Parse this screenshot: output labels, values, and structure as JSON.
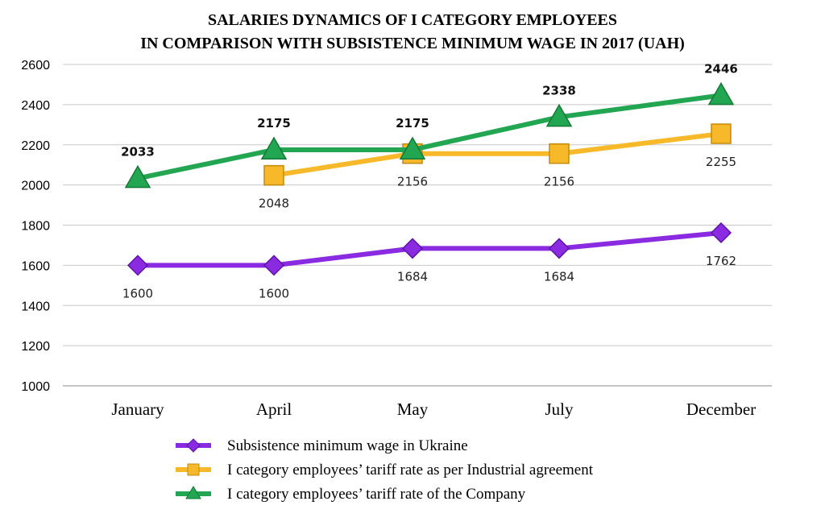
{
  "chart_data": {
    "type": "line",
    "title": [
      "SALARIES DYNAMICS OF I CATEGORY EMPLOYEES",
      "IN COMPARISON WITH SUBSISTENCE MINIMUM WAGE IN 2017 (UAH)"
    ],
    "categories": [
      "January",
      "April",
      "May",
      "July",
      "December"
    ],
    "ylim": [
      1000,
      2600
    ],
    "yticks": [
      1000,
      1200,
      1400,
      1600,
      1800,
      2000,
      2200,
      2400,
      2600
    ],
    "grid": true,
    "legend_position": "bottom",
    "series": [
      {
        "name": "Subsistence minimum wage in Ukraine",
        "color": "#8a2be2",
        "marker": "diamond",
        "values": [
          1600,
          1600,
          1684,
          1684,
          1762
        ],
        "labels": [
          "1600",
          "1600",
          "1684",
          "1684",
          "1762"
        ],
        "label_position": "below",
        "label_bold": false
      },
      {
        "name": "I category employees’ tariff rate as per Industrial agreement",
        "color": "#f7b92a",
        "marker": "square",
        "values": [
          null,
          2048,
          2156,
          2156,
          2255
        ],
        "labels": [
          null,
          "2048",
          "2156",
          "2156",
          "2255"
        ],
        "label_position": "below",
        "label_bold": false
      },
      {
        "name": "I category employees’ tariff rate of the Company",
        "color": "#22a652",
        "marker": "triangle",
        "values": [
          2033,
          2175,
          2175,
          2338,
          2446
        ],
        "labels": [
          "2033",
          "2175",
          "2175",
          "2338",
          "2446"
        ],
        "label_position": "above",
        "label_bold": true
      }
    ]
  }
}
